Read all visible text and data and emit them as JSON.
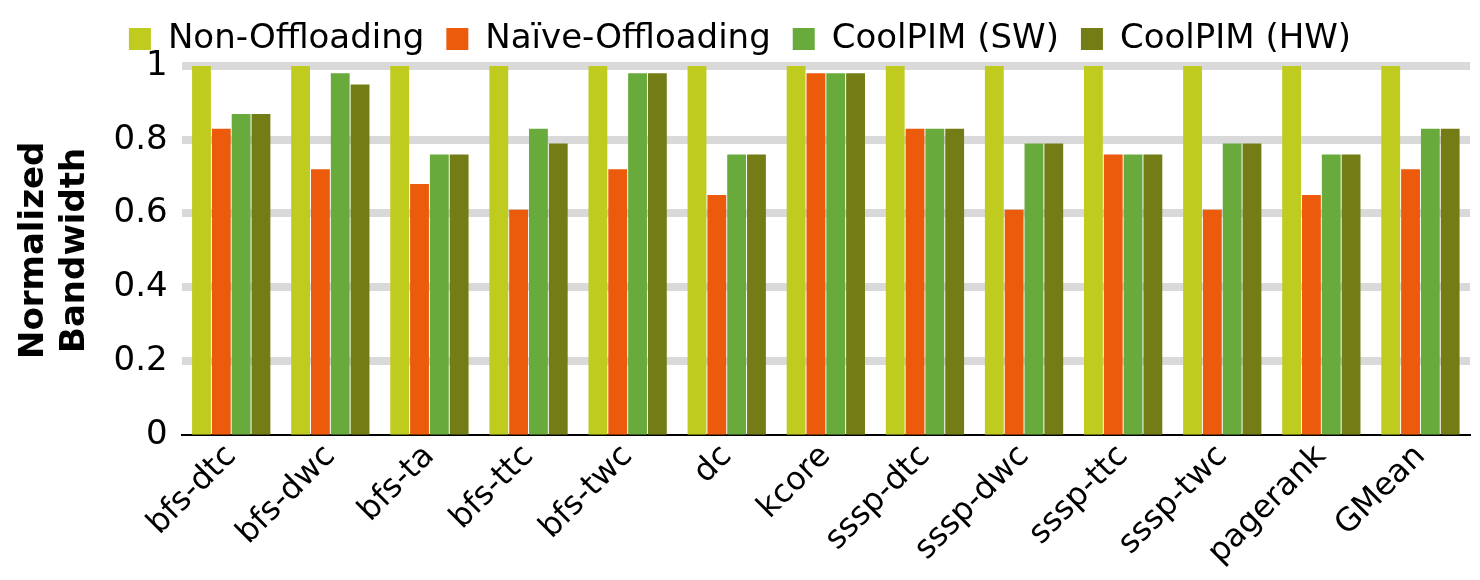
{
  "chart_data": {
    "type": "bar",
    "ylabel": "Normalized Bandwidth",
    "categories": [
      "bfs-dtc",
      "bfs-dwc",
      "bfs-ta",
      "bfs-ttc",
      "bfs-twc",
      "dc",
      "kcore",
      "sssp-dtc",
      "sssp-dwc",
      "sssp-ttc",
      "sssp-twc",
      "pagerank",
      "GMean"
    ],
    "series": [
      {
        "name": "Non-Offloading",
        "color": "#bfcb1f",
        "values": [
          1,
          1,
          1,
          1,
          1,
          1,
          1,
          1,
          1,
          1,
          1,
          1,
          1
        ]
      },
      {
        "name": "Naïve-Offloading",
        "color": "#ec5a0b",
        "values": [
          0.83,
          0.72,
          0.68,
          0.61,
          0.72,
          0.65,
          0.98,
          0.83,
          0.61,
          0.76,
          0.61,
          0.65,
          0.72
        ]
      },
      {
        "name": "CoolPIM (SW)",
        "color": "#68aa3b",
        "values": [
          0.87,
          0.98,
          0.76,
          0.83,
          0.98,
          0.76,
          0.98,
          0.83,
          0.79,
          0.76,
          0.79,
          0.76,
          0.83
        ]
      },
      {
        "name": "CoolPIM (HW)",
        "color": "#737c15",
        "values": [
          0.87,
          0.95,
          0.76,
          0.79,
          0.98,
          0.76,
          0.98,
          0.83,
          0.79,
          0.76,
          0.79,
          0.76,
          0.83
        ]
      }
    ],
    "ylim": [
      0,
      1
    ],
    "yticks": [
      0,
      0.2,
      0.4,
      0.6,
      0.8,
      1
    ],
    "grid": "y",
    "legend": "top"
  }
}
